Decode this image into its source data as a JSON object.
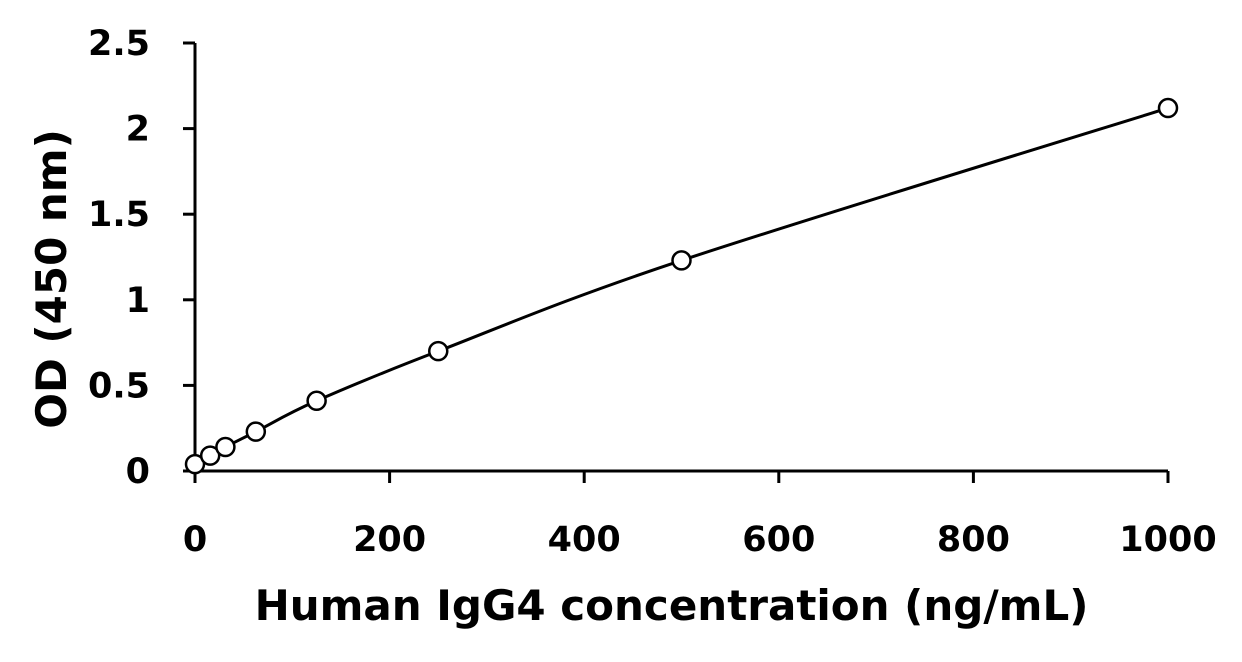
{
  "chart_data": {
    "type": "scatter",
    "title": "",
    "xlabel": "Human IgG4 concentration (ng/mL)",
    "ylabel": "OD (450 nm)",
    "xlim": [
      0,
      1000
    ],
    "ylim": [
      0,
      2.5
    ],
    "x_ticks": [
      "0",
      "200",
      "400",
      "600",
      "800",
      "1000"
    ],
    "y_ticks": [
      "0",
      "0.5",
      "1",
      "1.5",
      "2",
      "2.5"
    ],
    "grid": false,
    "legend": "none",
    "fit_line": "smooth curve",
    "points": [
      {
        "x": 0,
        "y": 0.04
      },
      {
        "x": 15.6,
        "y": 0.09
      },
      {
        "x": 31.25,
        "y": 0.14
      },
      {
        "x": 62.5,
        "y": 0.23
      },
      {
        "x": 125,
        "y": 0.41
      },
      {
        "x": 250,
        "y": 0.7
      },
      {
        "x": 500,
        "y": 1.23
      },
      {
        "x": 1000,
        "y": 2.12
      }
    ]
  }
}
